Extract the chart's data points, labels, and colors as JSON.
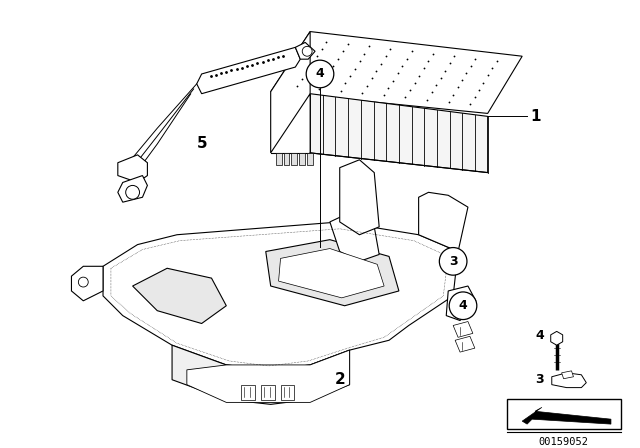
{
  "bg_color": "#ffffff",
  "line_color": "#000000",
  "diagram_number": "00159052",
  "figsize": [
    6.4,
    4.48
  ],
  "dpi": 100
}
